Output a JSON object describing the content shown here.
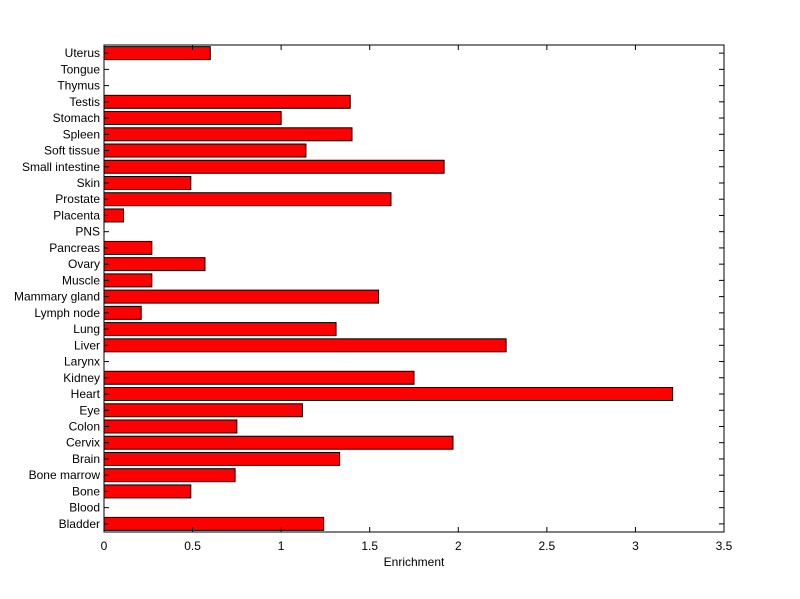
{
  "chart_data": {
    "type": "bar",
    "orientation": "horizontal",
    "title": "",
    "xlabel": "Enrichment",
    "ylabel": "",
    "xlim": [
      0,
      3.5
    ],
    "xticks": [
      0,
      0.5,
      1,
      1.5,
      2,
      2.5,
      3,
      3.5
    ],
    "xtick_labels": [
      "0",
      "0.5",
      "1",
      "1.5",
      "2",
      "2.5",
      "3",
      "3.5"
    ],
    "grid": false,
    "legend": "none",
    "bar_color": "#ff0000",
    "bar_edge_color": "#000000",
    "categories": [
      "Bladder",
      "Blood",
      "Bone",
      "Bone marrow",
      "Brain",
      "Cervix",
      "Colon",
      "Eye",
      "Heart",
      "Kidney",
      "Larynx",
      "Liver",
      "Lung",
      "Lymph node",
      "Mammary gland",
      "Muscle",
      "Ovary",
      "Pancreas",
      "PNS",
      "Placenta",
      "Prostate",
      "Skin",
      "Small intestine",
      "Soft tissue",
      "Spleen",
      "Stomach",
      "Testis",
      "Thymus",
      "Tongue",
      "Uterus"
    ],
    "values": [
      1.24,
      0,
      0.49,
      0.74,
      1.33,
      1.97,
      0.75,
      1.12,
      3.21,
      1.75,
      0,
      2.27,
      1.31,
      0.21,
      1.55,
      0.27,
      0.57,
      0.27,
      0,
      0.11,
      1.62,
      0.49,
      1.92,
      1.14,
      1.4,
      1.0,
      1.39,
      0,
      0,
      0.6
    ]
  }
}
